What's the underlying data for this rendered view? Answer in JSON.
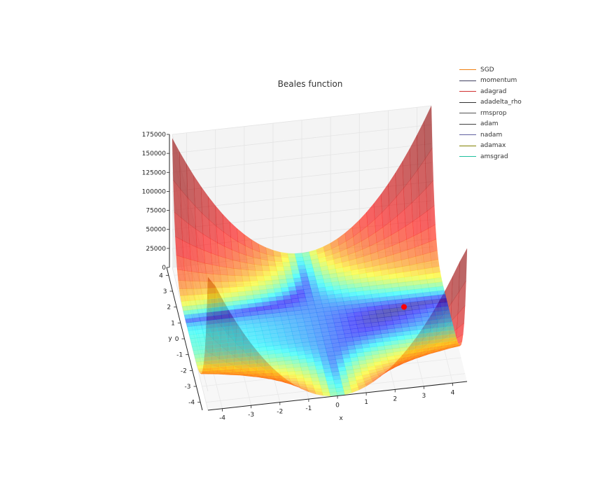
{
  "chart_data": {
    "type": "surface3d",
    "title": "Beales function",
    "xlabel": "x",
    "ylabel": "y",
    "zlabel": "",
    "x_ticks": [
      "-4",
      "-3",
      "-2",
      "-1",
      "0",
      "1",
      "2",
      "3",
      "4"
    ],
    "y_ticks": [
      "-4",
      "-3",
      "-2",
      "-1",
      "0",
      "1",
      "2",
      "3",
      "4"
    ],
    "z_ticks": [
      "0",
      "25000",
      "50000",
      "75000",
      "100000",
      "125000",
      "150000",
      "175000"
    ],
    "xlim": [
      -4.5,
      4.5
    ],
    "ylim": [
      -4.5,
      4.5
    ],
    "zlim": [
      0,
      175000
    ],
    "colormap": "jet",
    "surface_opacity": 0.6,
    "minimum_marker": {
      "x": 3,
      "y": 0.5,
      "color": "#ff0000"
    },
    "legend": {
      "placement": "top-right",
      "entries": [
        {
          "name": "SGD",
          "color": "#f07f0f"
        },
        {
          "name": "momentum",
          "color": "#404060"
        },
        {
          "name": "adagrad",
          "color": "#d03030"
        },
        {
          "name": "adadelta_rho",
          "color": "#303030"
        },
        {
          "name": "rmsprop",
          "color": "#505050"
        },
        {
          "name": "adam",
          "color": "#404040"
        },
        {
          "name": "nadam",
          "color": "#6060a0"
        },
        {
          "name": "adamax",
          "color": "#808000"
        },
        {
          "name": "amsgrad",
          "color": "#1fbf9f"
        }
      ]
    }
  }
}
